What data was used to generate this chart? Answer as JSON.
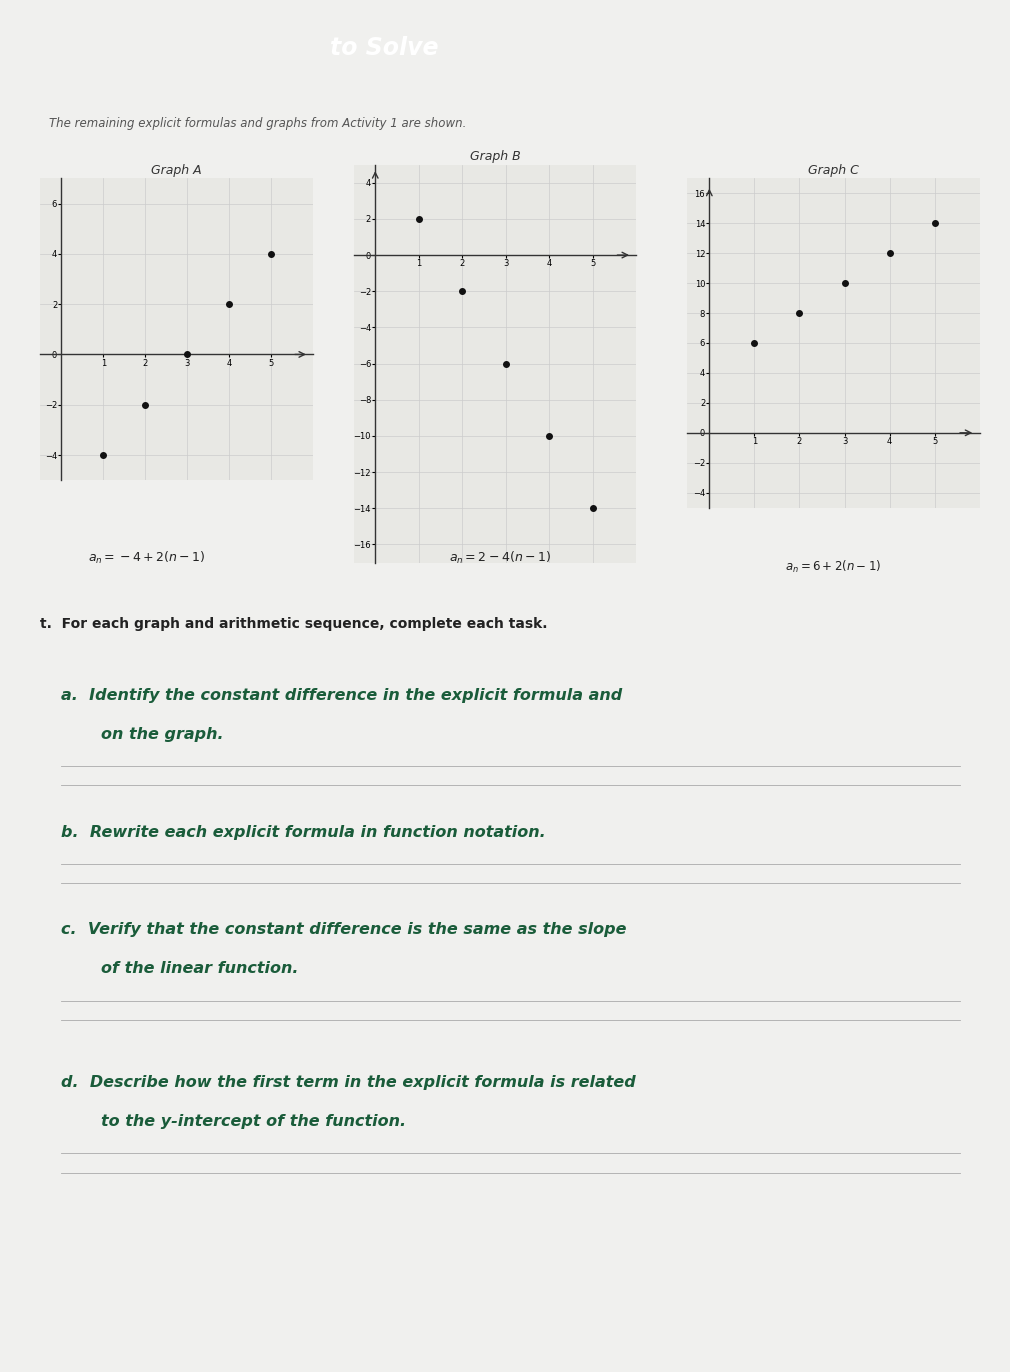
{
  "header_text": "The remaining explicit formulas and graphs from Activity 1 are shown.",
  "teal_header": "to Solve",
  "graph_a_label": "Graph A",
  "graph_b_label": "Graph B",
  "graph_c_label": "Graph C",
  "formula_a": "$a_n = -4 + 2(n - 1)$",
  "formula_b": "$a_n = 2 - 4(n - 1)$",
  "formula_c": "$a_n = 6 + 2(n - 1)$",
  "graph_a_points": [
    [
      1,
      -4
    ],
    [
      2,
      -2
    ],
    [
      3,
      0
    ],
    [
      4,
      2
    ],
    [
      5,
      4
    ]
  ],
  "graph_a_xlim": [
    -0.5,
    6
  ],
  "graph_a_ylim": [
    -5,
    7
  ],
  "graph_a_xticks": [
    1,
    2,
    3,
    4,
    5
  ],
  "graph_a_yticks": [
    -4,
    -2,
    0,
    2,
    4,
    6
  ],
  "graph_b_points": [
    [
      1,
      2
    ],
    [
      2,
      -2
    ],
    [
      3,
      -6
    ],
    [
      4,
      -10
    ],
    [
      5,
      -14
    ]
  ],
  "graph_b_xlim": [
    -0.5,
    6
  ],
  "graph_b_ylim": [
    -17,
    5
  ],
  "graph_b_xticks": [
    1,
    2,
    3,
    4,
    5
  ],
  "graph_b_yticks": [
    4,
    2,
    0,
    -2,
    -4,
    -6,
    -8,
    -10,
    -12,
    -14,
    -16
  ],
  "graph_c_points": [
    [
      1,
      6
    ],
    [
      2,
      8
    ],
    [
      3,
      10
    ],
    [
      4,
      12
    ],
    [
      5,
      14
    ]
  ],
  "graph_c_xlim": [
    -0.5,
    6
  ],
  "graph_c_ylim": [
    -5,
    17
  ],
  "graph_c_xticks": [
    1,
    2,
    3,
    4,
    5
  ],
  "graph_c_yticks": [
    -4,
    -2,
    0,
    2,
    4,
    6,
    8,
    10,
    12,
    14,
    16
  ],
  "task_intro": "t.  For each graph and arithmetic sequence, complete each task.",
  "task_a_text": "a.  Identify the constant difference in the explicit formula and\n      on the graph.",
  "task_b_text": "b.  Rewrite each explicit formula in function notation.",
  "task_c_text": "c.  Verify that the constant difference is the same as the slope\n      of the linear function.",
  "task_d_text": "d.  Describe how the first term in the explicit formula is related\n      to the y-intercept of the function.",
  "bg_color": "#f0f0ee",
  "grid_color": "#cccccc",
  "point_color": "#111111",
  "axis_color": "#333333",
  "teal_color": "#2b9b9b",
  "task_text_color": "#1a5c3a",
  "line_color": "#aaaaaa"
}
